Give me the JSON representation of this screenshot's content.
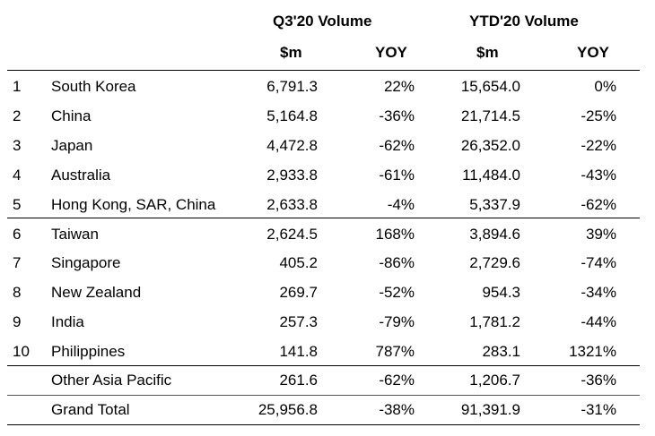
{
  "headers": {
    "q3_group": "Q3'20 Volume",
    "ytd_group": "YTD'20 Volume",
    "q3_m": "$m",
    "q3_yoy": "YOY",
    "ytd_m": "$m",
    "ytd_yoy": "YOY"
  },
  "rows": [
    {
      "rank": "1",
      "country": "South Korea",
      "q3_m": "6,791.3",
      "q3_yoy": "22%",
      "ytd_m": "15,654.0",
      "ytd_yoy": "0%"
    },
    {
      "rank": "2",
      "country": "China",
      "q3_m": "5,164.8",
      "q3_yoy": "-36%",
      "ytd_m": "21,714.5",
      "ytd_yoy": "-25%"
    },
    {
      "rank": "3",
      "country": "Japan",
      "q3_m": "4,472.8",
      "q3_yoy": "-62%",
      "ytd_m": "26,352.0",
      "ytd_yoy": "-22%"
    },
    {
      "rank": "4",
      "country": "Australia",
      "q3_m": "2,933.8",
      "q3_yoy": "-61%",
      "ytd_m": "11,484.0",
      "ytd_yoy": "-43%"
    },
    {
      "rank": "5",
      "country": "Hong Kong, SAR, China",
      "q3_m": "2,633.8",
      "q3_yoy": "-4%",
      "ytd_m": "5,337.9",
      "ytd_yoy": "-62%"
    },
    {
      "rank": "6",
      "country": "Taiwan",
      "q3_m": "2,624.5",
      "q3_yoy": "168%",
      "ytd_m": "3,894.6",
      "ytd_yoy": "39%"
    },
    {
      "rank": "7",
      "country": "Singapore",
      "q3_m": "405.2",
      "q3_yoy": "-86%",
      "ytd_m": "2,729.6",
      "ytd_yoy": "-74%"
    },
    {
      "rank": "8",
      "country": "New Zealand",
      "q3_m": "269.7",
      "q3_yoy": "-52%",
      "ytd_m": "954.3",
      "ytd_yoy": "-34%"
    },
    {
      "rank": "9",
      "country": "India",
      "q3_m": "257.3",
      "q3_yoy": "-79%",
      "ytd_m": "1,781.2",
      "ytd_yoy": "-44%"
    },
    {
      "rank": "10",
      "country": "Philippines",
      "q3_m": "141.8",
      "q3_yoy": "787%",
      "ytd_m": "283.1",
      "ytd_yoy": "1321%"
    }
  ],
  "other": {
    "rank": "",
    "country": "Other Asia Pacific",
    "q3_m": "261.6",
    "q3_yoy": "-62%",
    "ytd_m": "1,206.7",
    "ytd_yoy": "-36%"
  },
  "total": {
    "rank": "",
    "country": "Grand Total",
    "q3_m": "25,956.8",
    "q3_yoy": "-38%",
    "ytd_m": "91,391.9",
    "ytd_yoy": "-31%"
  }
}
